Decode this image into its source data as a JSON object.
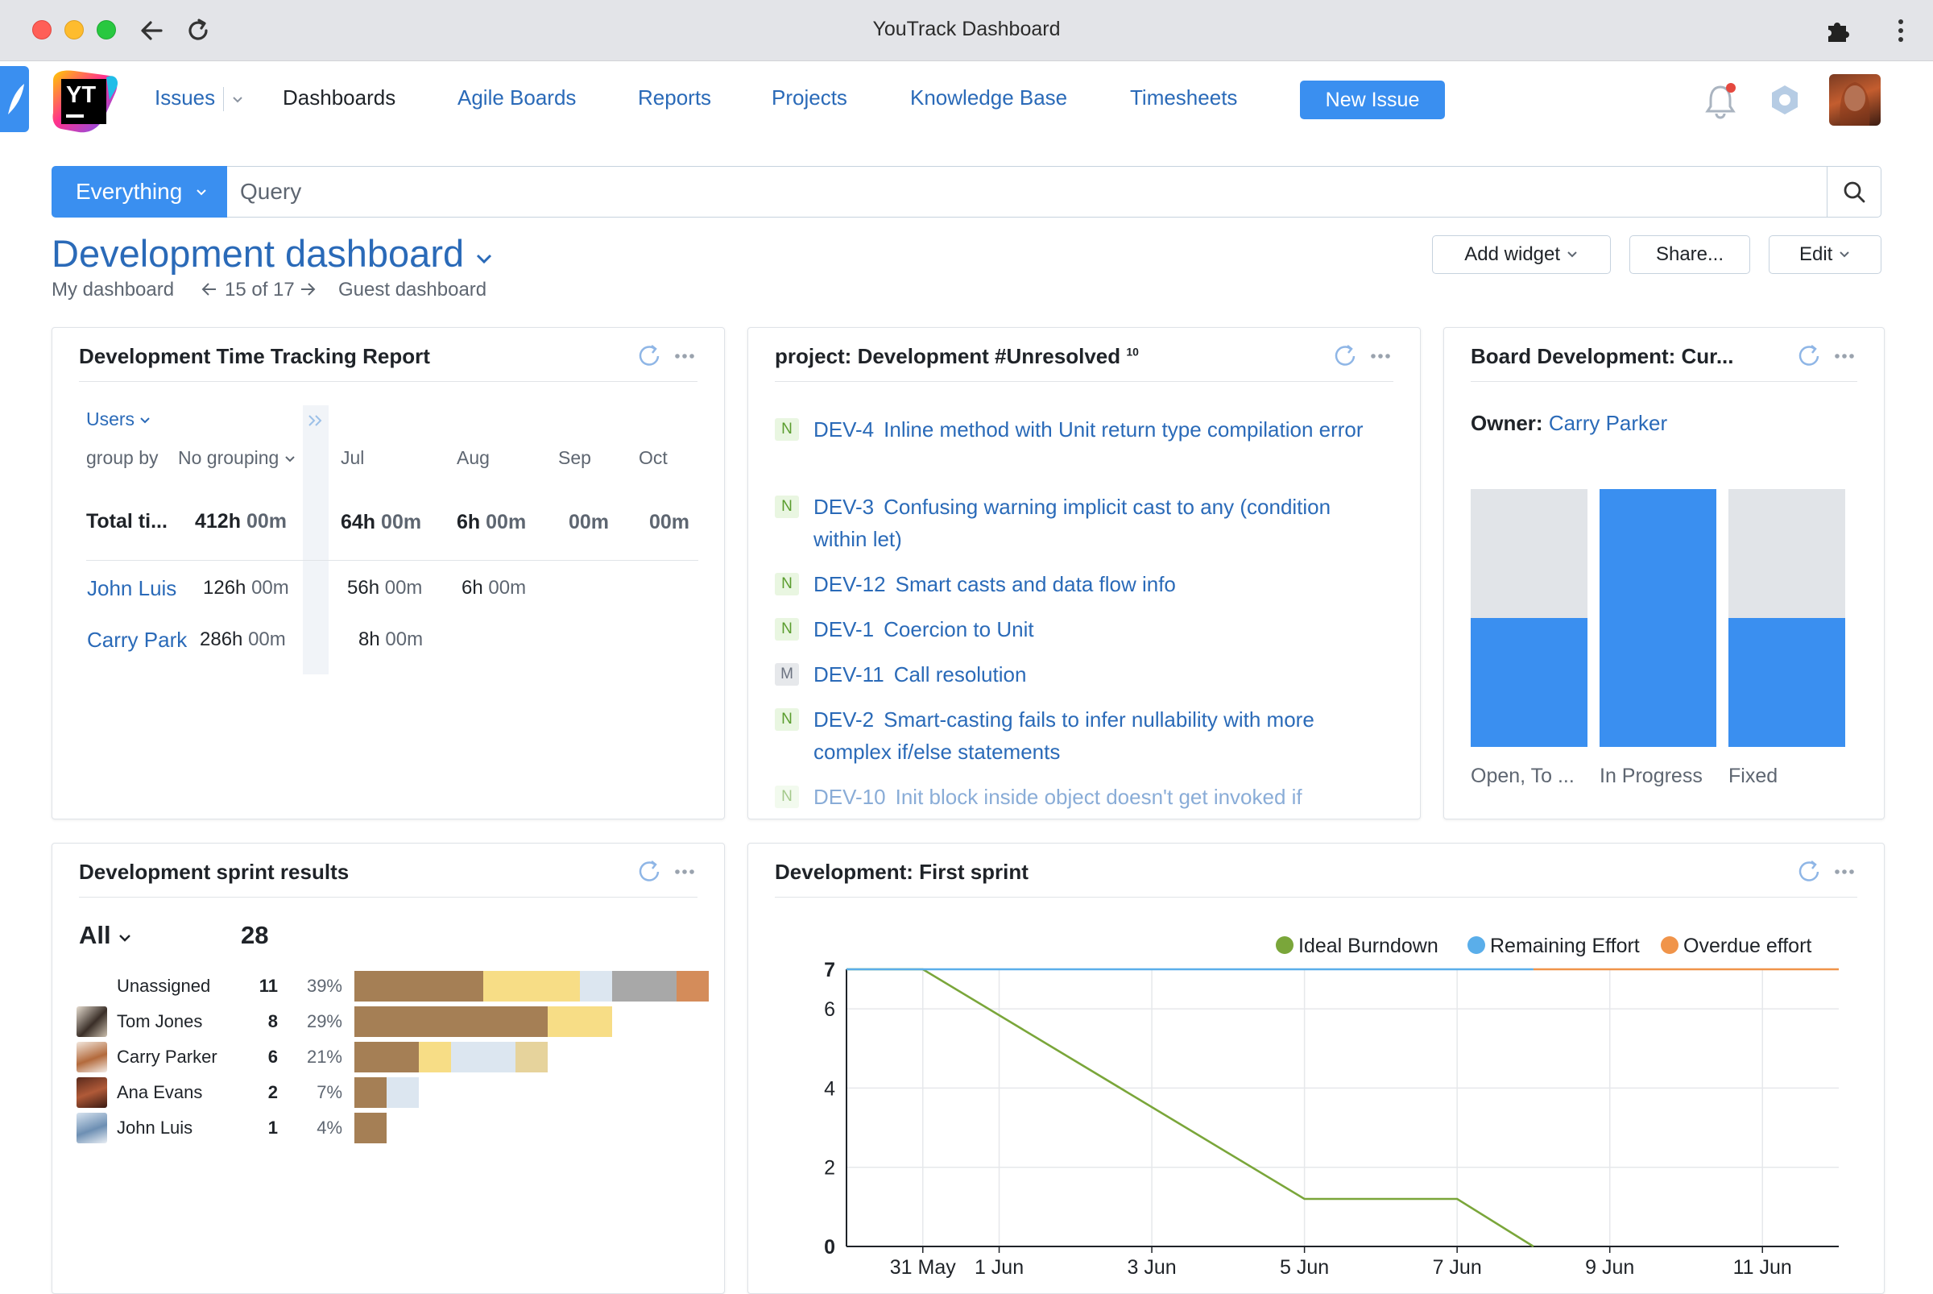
{
  "window": {
    "title": "YouTrack Dashboard"
  },
  "nav": {
    "issues": "Issues",
    "dashboards": "Dashboards",
    "agile_boards": "Agile Boards",
    "reports": "Reports",
    "projects": "Projects",
    "knowledge_base": "Knowledge Base",
    "timesheets": "Timesheets",
    "new_issue": "New Issue",
    "logo_text": "YT"
  },
  "search": {
    "scope": "Everything",
    "placeholder": "Query"
  },
  "dashboard": {
    "title": "Development dashboard",
    "my_dashboard": "My dashboard",
    "position": "15 of 17",
    "guest_dashboard": "Guest dashboard",
    "add_widget": "Add widget",
    "share": "Share...",
    "edit": "Edit"
  },
  "time_tracking": {
    "title": "Development Time Tracking Report",
    "users_label": "Users",
    "group_by_label": "group by",
    "group_by_value": "No grouping",
    "months": [
      "Jul",
      "Aug",
      "Sep",
      "Oct"
    ],
    "total_label": "Total ti...",
    "total_value_h": "412h",
    "total_value_m": "00m",
    "totals_by_month": [
      {
        "h": "64h",
        "m": "00m"
      },
      {
        "h": "6h",
        "m": "00m"
      },
      {
        "h": "",
        "m": "00m"
      },
      {
        "h": "",
        "m": "00m"
      }
    ],
    "users": [
      {
        "name": "John Luis",
        "total_h": "126h",
        "total_m": "00m",
        "m1_h": "56h",
        "m1_m": "00m",
        "m2_h": "6h",
        "m2_m": "00m"
      },
      {
        "name": "Carry Park",
        "total_h": "286h",
        "total_m": "00m",
        "m1_h": "8h",
        "m1_m": "00m"
      }
    ]
  },
  "unresolved": {
    "title": "project: Development #Unresolved",
    "count": "10",
    "issues": [
      {
        "badge": "N",
        "id": "DEV-4",
        "summary": "Inline method with Unit return type compilation error"
      },
      {
        "badge": "N",
        "id": "DEV-3",
        "summary": "Confusing warning implicit cast to any (condition within let)"
      },
      {
        "badge": "N",
        "id": "DEV-12",
        "summary": "Smart casts and data flow info"
      },
      {
        "badge": "N",
        "id": "DEV-1",
        "summary": "Coercion to Unit"
      },
      {
        "badge": "M",
        "id": "DEV-11",
        "summary": "Call resolution"
      },
      {
        "badge": "N",
        "id": "DEV-2",
        "summary": "Smart-casting fails to infer nullability with more complex if/else statements"
      },
      {
        "badge": "N",
        "id": "DEV-10",
        "summary": "Init block inside object doesn't get invoked if"
      }
    ]
  },
  "board": {
    "title": "Board Development: Cur...",
    "owner_label": "Owner:",
    "owner_name": "Carry Parker",
    "columns": [
      {
        "label": "Open, To ...",
        "fill": 0.5
      },
      {
        "label": "In Progress",
        "fill": 1.0
      },
      {
        "label": "Fixed",
        "fill": 0.5
      }
    ]
  },
  "sprint_results": {
    "title": "Development sprint results",
    "filter": "All",
    "total": "28",
    "rows": [
      {
        "name": "Unassigned",
        "count": "11",
        "pct": "39%",
        "avatar": "none",
        "segments": [
          {
            "w": 4,
            "c": "#a57f55"
          },
          {
            "w": 3,
            "c": "#f7dd86"
          },
          {
            "w": 1,
            "c": "#dce6f0"
          },
          {
            "w": 2,
            "c": "#a8a8a8"
          },
          {
            "w": 1,
            "c": "#d48c5a"
          }
        ]
      },
      {
        "name": "Tom Jones",
        "count": "8",
        "pct": "29%",
        "avatar": "tom",
        "segments": [
          {
            "w": 6,
            "c": "#a57f55"
          },
          {
            "w": 2,
            "c": "#f7dd86"
          }
        ]
      },
      {
        "name": "Carry Parker",
        "count": "6",
        "pct": "21%",
        "avatar": "carry",
        "segments": [
          {
            "w": 2,
            "c": "#a57f55"
          },
          {
            "w": 1,
            "c": "#f7dd86"
          },
          {
            "w": 2,
            "c": "#dce6f0"
          },
          {
            "w": 1,
            "c": "#e6d39c"
          }
        ]
      },
      {
        "name": "Ana Evans",
        "count": "2",
        "pct": "7%",
        "avatar": "ana",
        "segments": [
          {
            "w": 1,
            "c": "#a57f55"
          },
          {
            "w": 1,
            "c": "#dce6f0"
          }
        ]
      },
      {
        "name": "John Luis",
        "count": "1",
        "pct": "4%",
        "avatar": "john",
        "segments": [
          {
            "w": 1,
            "c": "#a57f55"
          }
        ]
      }
    ]
  },
  "chart_data": {
    "type": "line",
    "title": "Development: First sprint",
    "x_tick_labels": [
      "31 May",
      "1 Jun",
      "3 Jun",
      "5 Jun",
      "7 Jun",
      "9 Jun",
      "11 Jun"
    ],
    "x_range": [
      "2017-05-30",
      "2017-06-12"
    ],
    "y_ticks": [
      0,
      2,
      4,
      6,
      7
    ],
    "ylim": [
      0,
      7
    ],
    "legend_position": "top-right",
    "grid": true,
    "series": [
      {
        "name": "Ideal Burndown",
        "color": "#7aa63a",
        "points": [
          [
            "2017-05-30",
            7
          ],
          [
            "2017-05-31",
            7
          ],
          [
            "2017-06-05",
            1.2
          ],
          [
            "2017-06-07",
            1.2
          ],
          [
            "2017-06-08",
            0
          ]
        ]
      },
      {
        "name": "Remaining Effort",
        "color": "#5aaeea",
        "points": [
          [
            "2017-05-30",
            7
          ],
          [
            "2017-06-08",
            7
          ]
        ]
      },
      {
        "name": "Overdue effort",
        "color": "#f0944a",
        "points": [
          [
            "2017-06-08",
            7
          ],
          [
            "2017-06-12",
            7
          ]
        ]
      }
    ]
  }
}
